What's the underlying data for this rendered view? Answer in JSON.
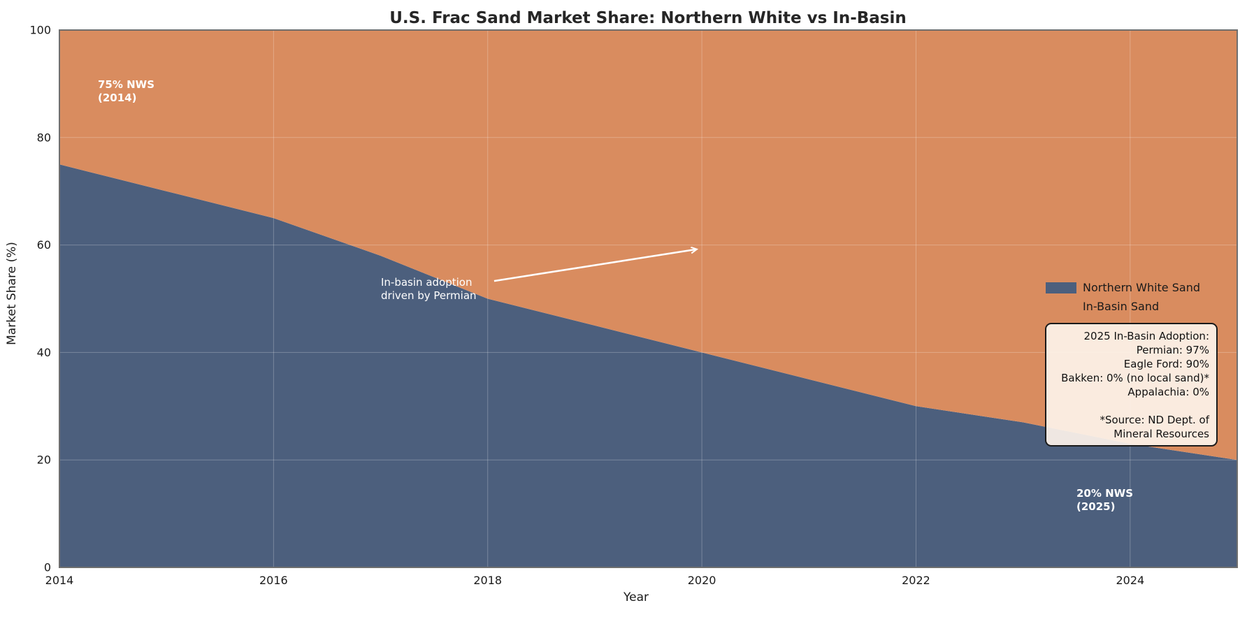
{
  "chart_data": {
    "type": "area",
    "stacked": true,
    "title": "U.S. Frac Sand Market Share: Northern White vs In-Basin",
    "xlabel": "Year",
    "ylabel": "Market Share (%)",
    "x": [
      2014,
      2015,
      2016,
      2017,
      2018,
      2019,
      2020,
      2021,
      2022,
      2023,
      2024,
      2025
    ],
    "series": [
      {
        "name": "Northern White Sand",
        "color": "#4C5F7D",
        "values": [
          75,
          70,
          65,
          58,
          50,
          45,
          40,
          35,
          30,
          27,
          23,
          20
        ]
      },
      {
        "name": "In-Basin Sand",
        "color": "#D98C5F",
        "values": [
          25,
          30,
          35,
          42,
          50,
          55,
          60,
          65,
          70,
          73,
          77,
          80
        ]
      }
    ],
    "xlim": [
      2014,
      2025
    ],
    "ylim": [
      0,
      100
    ],
    "xticks": [
      2014,
      2016,
      2018,
      2020,
      2022,
      2024
    ],
    "yticks": [
      0,
      20,
      40,
      60,
      80,
      100
    ],
    "grid": true,
    "legend_position": "right-middle",
    "annotations": [
      {
        "id": "nws-2014",
        "lines": [
          "75% NWS",
          "(2014)"
        ],
        "bold": true,
        "color": "#ffffff",
        "x_year": 2014.36,
        "y_pct_top": 91.0
      },
      {
        "id": "nws-2025",
        "lines": [
          "20% NWS",
          "(2025)"
        ],
        "bold": true,
        "color": "#ffffff",
        "x_year": 2023.5,
        "y_pct_top": 15.0
      },
      {
        "id": "permian-driver",
        "lines": [
          "In-basin adoption",
          "driven by Permian"
        ],
        "bold": false,
        "color": "#ffffff",
        "x_year": 2017.0,
        "y_pct_top": 54.2,
        "arrow": {
          "x1_year": 2018.06,
          "y1_pct": 53.3,
          "x2_year": 2019.95,
          "y2_pct": 59.2,
          "color": "#ffffff"
        }
      }
    ],
    "info_box": {
      "lines": [
        "2025 In-Basin Adoption:",
        "Permian: 97%",
        "Eagle Ford: 90%",
        "Bakken: 0% (no local sand)*",
        "Appalachia: 0%",
        "",
        "*Source: ND Dept. of",
        "Mineral Resources"
      ],
      "background": "#FDF3EA",
      "background_alpha": 0.92,
      "border_color": "#1a1a1a"
    }
  }
}
